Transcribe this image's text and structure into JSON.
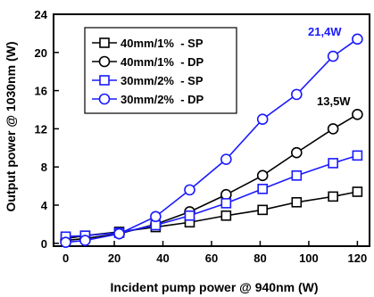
{
  "chart_data": {
    "type": "line",
    "title": "",
    "xlabel": "Incident pump power @ 940nm (W)",
    "ylabel": "Output power @ 1030nm (W)",
    "xlim": [
      -5,
      125
    ],
    "ylim": [
      -0.3,
      24
    ],
    "xticks": [
      0,
      20,
      40,
      60,
      80,
      100,
      120
    ],
    "yticks": [
      0,
      4,
      8,
      12,
      16,
      20,
      24
    ],
    "x": [
      0,
      8,
      22,
      37,
      51,
      66,
      81,
      95,
      110,
      120
    ],
    "grid": false,
    "legend_position": "top-left",
    "series": [
      {
        "name": "40mm/1%  - SP",
        "color": "#000000",
        "marker": "square",
        "values": [
          0.5,
          0.8,
          1.2,
          1.7,
          2.2,
          2.9,
          3.5,
          4.3,
          4.9,
          5.4
        ]
      },
      {
        "name": "40mm/1%  - DP",
        "color": "#000000",
        "marker": "circle",
        "values": [
          0.3,
          0.5,
          1.0,
          2.0,
          3.3,
          5.1,
          7.1,
          9.5,
          12.0,
          13.5
        ]
      },
      {
        "name": "30mm/2%  - SP",
        "color": "#1a1aff",
        "marker": "square",
        "values": [
          0.7,
          0.8,
          1.1,
          1.9,
          2.9,
          4.2,
          5.7,
          7.1,
          8.4,
          9.2
        ]
      },
      {
        "name": "30mm/2%  - DP",
        "color": "#1a1aff",
        "marker": "circle",
        "values": [
          0.1,
          0.3,
          1.0,
          2.8,
          5.6,
          8.8,
          13.0,
          15.6,
          19.6,
          21.4
        ]
      }
    ],
    "annotations": [
      {
        "text": "21,4W",
        "color": "#1a1aff"
      },
      {
        "text": "13,5W",
        "color": "#000000"
      }
    ]
  }
}
